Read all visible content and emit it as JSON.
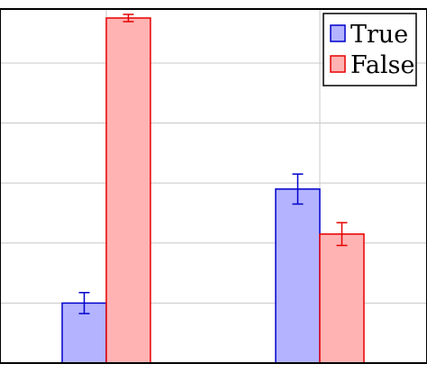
{
  "chart_data": {
    "type": "bar",
    "categories": [
      "",
      ""
    ],
    "series": [
      {
        "name": "True",
        "values": [
          0.2,
          0.58
        ],
        "errors": [
          0.035,
          0.05
        ],
        "fill": "#b3b3ff",
        "stroke": "#0000cc"
      },
      {
        "name": "False",
        "values": [
          1.15,
          0.43
        ],
        "errors": [
          0.012,
          0.038
        ],
        "fill": "#ffb3b3",
        "stroke": "#e60000"
      }
    ],
    "ylim": [
      0,
      1.18
    ],
    "grid": true,
    "legend_position": "top-right",
    "title": "",
    "xlabel": "",
    "ylabel": ""
  }
}
